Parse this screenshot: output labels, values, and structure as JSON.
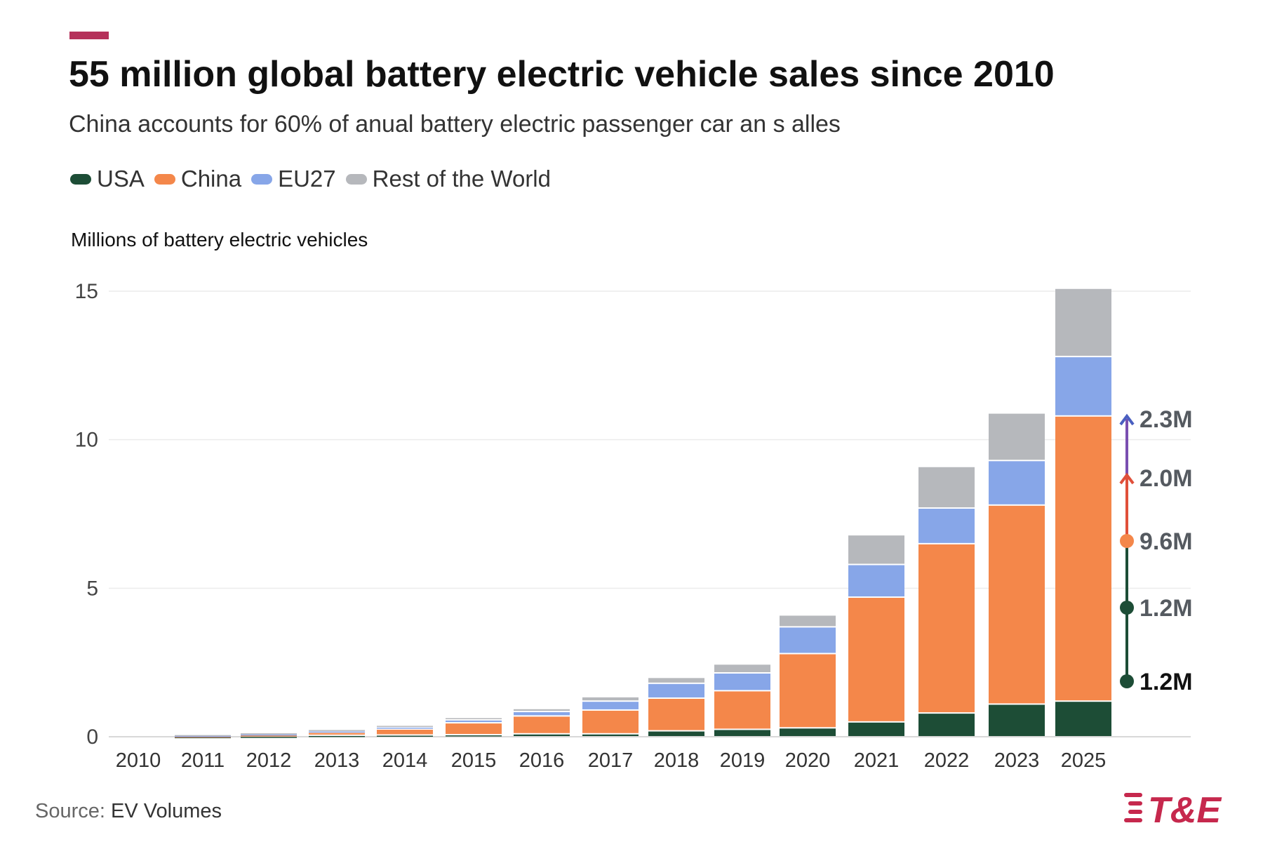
{
  "header": {
    "title": "55 million global battery electric vehicle sales since 2010",
    "subtitle": "China accounts for 60% of anual battery electric passenger car an s alles"
  },
  "footer": {
    "source_label": "Source:",
    "source_value": "EV Volumes",
    "logo_text": "T&E"
  },
  "colors": {
    "accent": "#b5315a",
    "USA": "#1d4d36",
    "China": "#f4874a",
    "EU27": "#87a6e8",
    "Rest of the World": "#b6b8bc",
    "logo": "#c6284d"
  },
  "chart_data": {
    "type": "bar",
    "stacked": true,
    "title": "55 million global battery electric vehicle sales since 2010",
    "subtitle": "China accounts for 60% of anual battery electric passenger car an s alles",
    "ylabel": "Millions of battery electric vehicles",
    "xlabel": "",
    "ylim": [
      0,
      15
    ],
    "yticks": [
      0,
      5,
      10,
      15
    ],
    "grid": true,
    "legend": "top-left",
    "categories": [
      "2010",
      "2011",
      "2012",
      "2013",
      "2014",
      "2015",
      "2016",
      "2017",
      "2018",
      "2019",
      "2020",
      "2021",
      "2022",
      "2023",
      "2025"
    ],
    "series": [
      {
        "name": "USA",
        "color": "#1d4d36",
        "values": [
          0,
          0.01,
          0.02,
          0.05,
          0.06,
          0.07,
          0.1,
          0.1,
          0.2,
          0.25,
          0.3,
          0.5,
          0.8,
          1.1,
          1.2
        ]
      },
      {
        "name": "China",
        "color": "#f4874a",
        "values": [
          0,
          0.02,
          0.05,
          0.1,
          0.2,
          0.4,
          0.6,
          0.8,
          1.1,
          1.3,
          2.5,
          4.2,
          5.7,
          6.7,
          9.6
        ]
      },
      {
        "name": "EU27",
        "color": "#87a6e8",
        "values": [
          0,
          0.02,
          0.03,
          0.05,
          0.07,
          0.1,
          0.15,
          0.3,
          0.5,
          0.6,
          0.9,
          1.1,
          1.2,
          1.5,
          2.0
        ]
      },
      {
        "name": "Rest of the World",
        "color": "#b6b8bc",
        "values": [
          0,
          0.03,
          0.04,
          0.05,
          0.06,
          0.08,
          0.1,
          0.15,
          0.2,
          0.3,
          0.4,
          1.0,
          1.4,
          1.6,
          2.3
        ]
      }
    ],
    "annotations": [
      {
        "label": "2.3M",
        "color": "#555a60"
      },
      {
        "label": "2.0M",
        "color": "#555a60"
      },
      {
        "label": "9.6M",
        "color": "#555a60"
      },
      {
        "label": "1.2M",
        "color": "#555a60"
      },
      {
        "label": "1.2M",
        "color": "#111111"
      }
    ]
  }
}
